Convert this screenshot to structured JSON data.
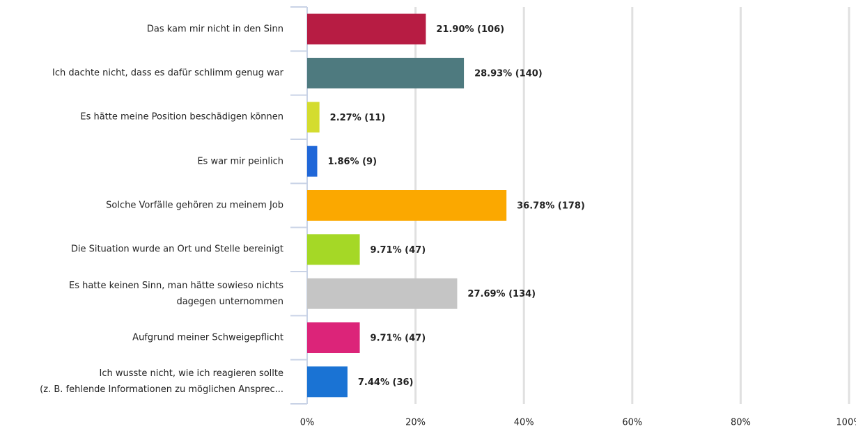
{
  "chart_data": {
    "type": "barh",
    "categories": [
      "Das kam mir nicht in den Sinn",
      "Ich dachte nicht, dass es dafür schlimm genug war",
      "Es hätte meine Position beschädigen können",
      "Es war mir peinlich",
      "Solche Vorfälle gehören zu meinem Job",
      "Die Situation wurde an Ort und Stelle bereinigt",
      "Es hatte keinen Sinn, man hätte sowieso nichts\ndagegen unternommen",
      "Aufgrund meiner Schweigepflicht",
      "Ich wusste nicht, wie ich reagieren sollte\n(z. B. fehlende Informationen zu möglichen Ansprec..."
    ],
    "values": [
      21.9,
      28.93,
      2.27,
      1.86,
      36.78,
      9.71,
      27.69,
      9.71,
      7.44
    ],
    "value_labels": [
      "21.90% (106)",
      "28.93% (140)",
      "2.27% (11)",
      "1.86% (9)",
      "36.78% (178)",
      "9.71% (47)",
      "27.69% (134)",
      "9.71% (47)",
      "7.44% (36)"
    ],
    "colors": [
      "#b71c43",
      "#4e7a7f",
      "#d4dc2f",
      "#2067d8",
      "#fba800",
      "#a5d826",
      "#c5c5c5",
      "#dc2479",
      "#1a73d4"
    ],
    "xlim": [
      0,
      100
    ],
    "xticks": [
      {
        "value": 0,
        "label": "0%"
      },
      {
        "value": 20,
        "label": "20%"
      },
      {
        "value": 40,
        "label": "40%"
      },
      {
        "value": 60,
        "label": "60%"
      },
      {
        "value": 80,
        "label": "80%"
      },
      {
        "value": 100,
        "label": "100%"
      }
    ],
    "grid": true
  }
}
